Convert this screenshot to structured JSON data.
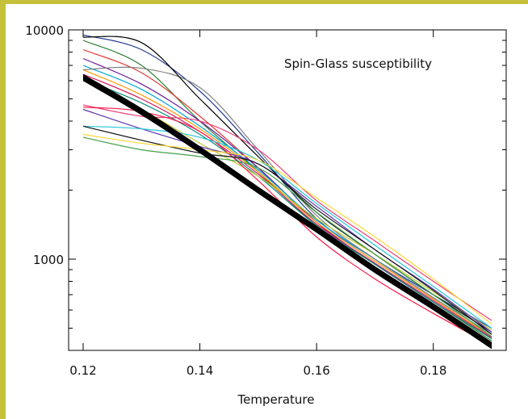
{
  "colors": {
    "frame": "#c6c13a",
    "axis": "#000000",
    "mean_curve": "#000000"
  },
  "chart_data": {
    "type": "line",
    "title": "Spin-Glass susceptibility",
    "xlabel": "Temperature",
    "ylabel": "",
    "xlim": [
      0.12,
      0.19
    ],
    "ylim": [
      400,
      10000
    ],
    "yscale": "log",
    "grid": false,
    "legend": "none",
    "x_ticks": [
      0.12,
      0.14,
      0.16,
      0.18
    ],
    "x_tick_labels": [
      "0.12",
      "0.14",
      "0.16",
      "0.18"
    ],
    "y_ticks": [
      1000,
      10000
    ],
    "y_tick_labels": [
      "1000",
      "10000"
    ],
    "x": [
      0.12,
      0.13,
      0.14,
      0.15,
      0.16,
      0.17,
      0.18,
      0.19
    ],
    "series": [
      {
        "color": "#1f3a93",
        "values": [
          9500,
          8200,
          5400,
          2900,
          1500,
          1000,
          700,
          500
        ]
      },
      {
        "color": "#2e7d32",
        "values": [
          9000,
          7000,
          4000,
          2400,
          1400,
          950,
          650,
          440
        ]
      },
      {
        "color": "#e53935",
        "values": [
          8200,
          6500,
          4200,
          2500,
          1450,
          900,
          620,
          430
        ]
      },
      {
        "color": "#6a1b9a",
        "values": [
          7500,
          5800,
          4000,
          2500,
          1450,
          950,
          650,
          450
        ]
      },
      {
        "color": "#00a6d6",
        "values": [
          7000,
          5500,
          3800,
          2450,
          1480,
          1000,
          680,
          470
        ]
      },
      {
        "color": "#ff9800",
        "values": [
          6700,
          5200,
          3700,
          2400,
          1450,
          980,
          670,
          460
        ]
      },
      {
        "color": "#d81b60",
        "values": [
          6400,
          5000,
          3600,
          2350,
          1420,
          960,
          660,
          455
        ]
      },
      {
        "color": "#00897b",
        "values": [
          6100,
          4800,
          3500,
          2300,
          1400,
          950,
          650,
          450
        ]
      },
      {
        "color": "#808080",
        "values": [
          6700,
          6800,
          5600,
          3000,
          1550,
          1000,
          680,
          470
        ]
      },
      {
        "color": "#000000",
        "values": [
          9300,
          8800,
          5000,
          2800,
          1600,
          1050,
          700,
          480
        ]
      },
      {
        "color": "#c0ca33",
        "values": [
          6000,
          4500,
          3200,
          2300,
          1500,
          1050,
          720,
          490
        ]
      },
      {
        "color": "#ec407a",
        "values": [
          4700,
          4200,
          4000,
          3000,
          1800,
          1200,
          800,
          540
        ]
      },
      {
        "color": "#5e35b1",
        "values": [
          4500,
          3700,
          3100,
          2600,
          1700,
          1100,
          740,
          480
        ]
      },
      {
        "color": "#ff1744",
        "values": [
          4600,
          4400,
          3600,
          2200,
          1250,
          820,
          580,
          420
        ]
      },
      {
        "color": "#26c6da",
        "values": [
          3800,
          3700,
          3400,
          2700,
          1750,
          1150,
          760,
          500
        ]
      },
      {
        "color": "#111111",
        "values": [
          3800,
          3300,
          2900,
          2600,
          1650,
          1100,
          730,
          470
        ]
      },
      {
        "color": "#fdd835",
        "values": [
          3500,
          3200,
          3000,
          2700,
          1850,
          1250,
          820,
          520
        ]
      },
      {
        "color": "#43a047",
        "values": [
          3400,
          3000,
          2800,
          2500,
          1600,
          1050,
          700,
          460
        ]
      }
    ],
    "mean_band": {
      "values": [
        6200,
        4400,
        3000,
        2000,
        1350,
        900,
        620,
        420
      ],
      "spread": 0.03,
      "strands": 9
    }
  }
}
